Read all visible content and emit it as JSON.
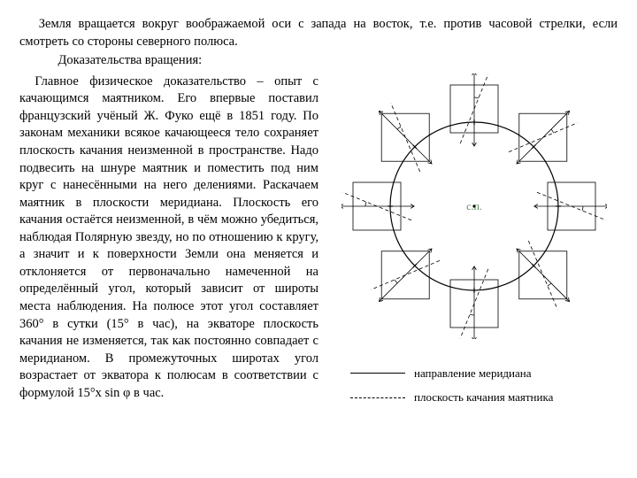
{
  "intro": "Земля вращается вокруг воображаемой оси с запада на восток, т.е. против часовой стрелки, если смотреть со стороны северного полюса.",
  "proof_title": "Доказательства вращения:",
  "body": "Главное физическое доказательство – опыт с качающимся маятником. Его впервые поставил французский учёный Ж. Фуко ещё в 1851 году. По законам механики всякое качающееся тело сохраняет плоскость качания неизменной в пространстве. Надо подвесить на шнуре маятник и поместить под ним круг с нанесёнными на него делениями. Раскачаем маятник в плоскости меридиана. Плоскость его качания остаётся неизменной, в чём можно убедиться, наблюдая Полярную звезду, но по отношению к кругу, а значит и к поверхности Земли она меняется и отклоняется от первоначально намеченной на определённый угол, который зависит от широты места наблюдения. На полюсе этот угол составляет 360° в сутки (15° в час), на экваторе плоскость качания не изменяется, так как постоянно совпадает с меридианом. В промежуточных широтах угол возрастает от экватора к полюсам в соответствии с формулой 15°х sin φ в час.",
  "legend": {
    "solid": "направление меридиана",
    "dashed": "плоскость качания маятника"
  },
  "diagram": {
    "type": "schematic",
    "stroke": "#000000",
    "stroke_light": "#000000",
    "stroke_width_main": 1.2,
    "stroke_width_light": 0.8,
    "circle_r": 95,
    "square_side": 54,
    "center_label": "с.п.",
    "center_label_color": "#5b8c5b",
    "square_angles_deg": [
      0,
      45,
      90,
      135,
      180,
      225,
      270,
      315
    ],
    "square_center_radius": 110,
    "arc_r": 13
  }
}
